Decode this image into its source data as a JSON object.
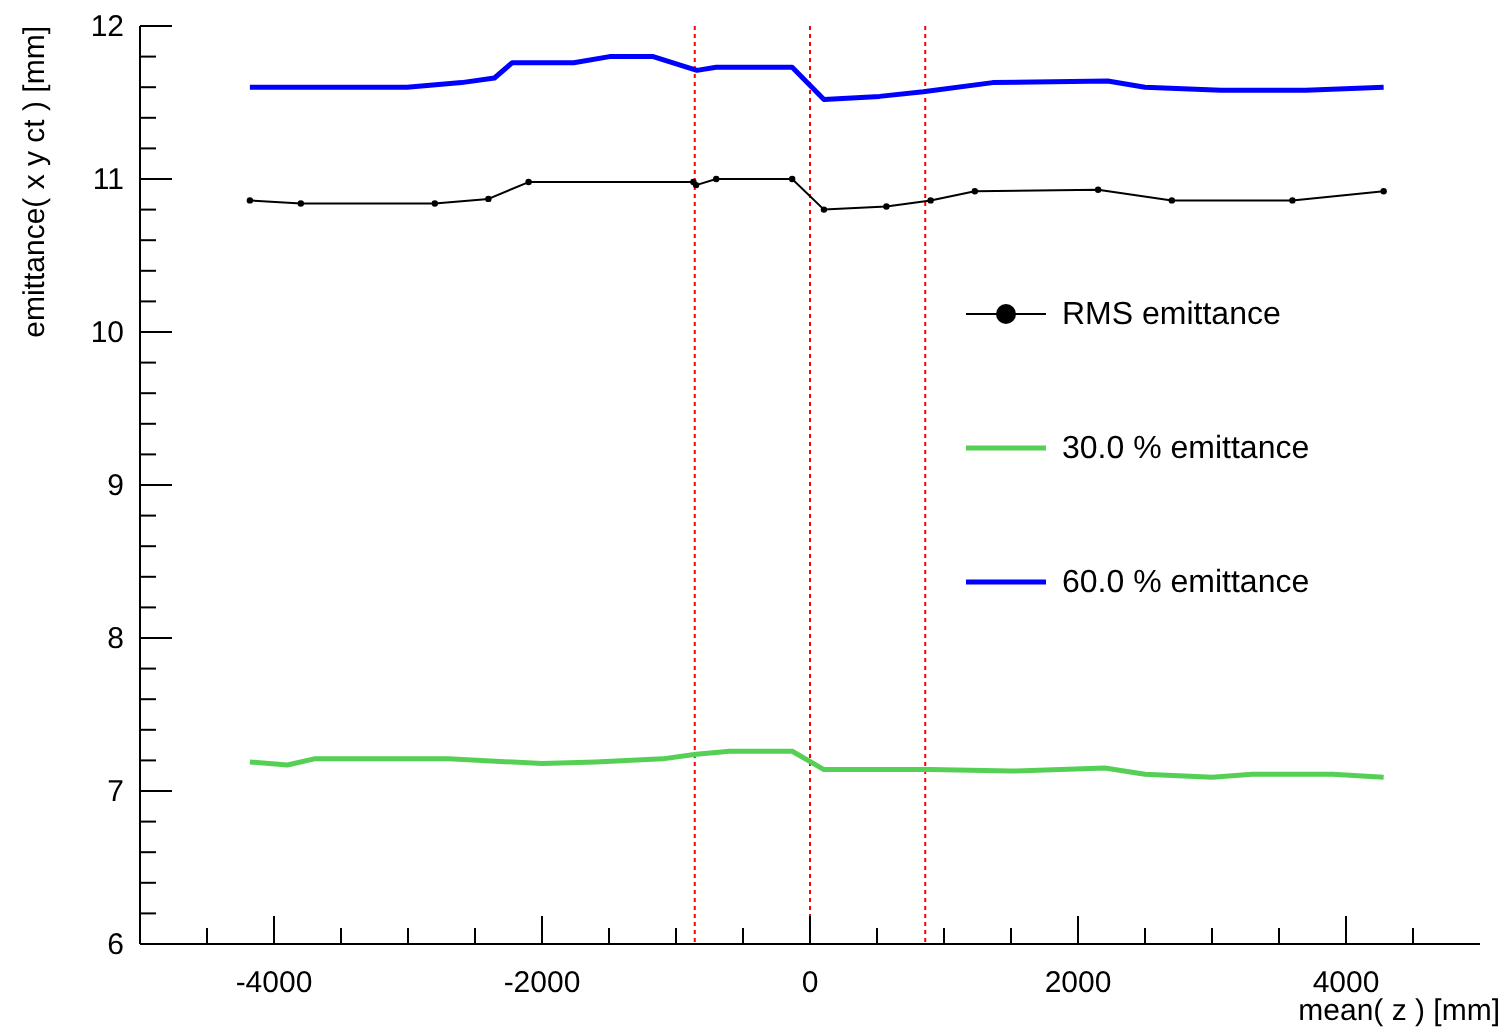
{
  "chart_data": {
    "type": "line",
    "xlabel": "mean( z ) [mm]",
    "ylabel": "emittance( x y ct ) [mm]",
    "xlim": [
      -5000,
      5000
    ],
    "ylim": [
      6,
      12
    ],
    "xticks": [
      {
        "value": -4500,
        "label": null
      },
      -4000,
      {
        "value": -3500,
        "label": null
      },
      {
        "value": -3000,
        "label": null
      },
      {
        "value": -2500,
        "label": null
      },
      -2000,
      {
        "value": -1500,
        "label": null
      },
      {
        "value": -1000,
        "label": null
      },
      {
        "value": -500,
        "label": null
      },
      0,
      {
        "value": 500,
        "label": null
      },
      {
        "value": 1000,
        "label": null
      },
      {
        "value": 1500,
        "label": null
      },
      2000,
      {
        "value": 2500,
        "label": null
      },
      {
        "value": 3000,
        "label": null
      },
      {
        "value": 3500,
        "label": null
      },
      4000,
      {
        "value": 4500,
        "label": null
      }
    ],
    "yticks": [
      6,
      {
        "value": 6.2,
        "label": null
      },
      {
        "value": 6.4,
        "label": null
      },
      {
        "value": 6.6,
        "label": null
      },
      {
        "value": 6.8,
        "label": null
      },
      7,
      {
        "value": 7.2,
        "label": null
      },
      {
        "value": 7.4,
        "label": null
      },
      {
        "value": 7.6,
        "label": null
      },
      {
        "value": 7.8,
        "label": null
      },
      8,
      {
        "value": 8.2,
        "label": null
      },
      {
        "value": 8.4,
        "label": null
      },
      {
        "value": 8.6,
        "label": null
      },
      {
        "value": 8.8,
        "label": null
      },
      9,
      {
        "value": 9.2,
        "label": null
      },
      {
        "value": 9.4,
        "label": null
      },
      {
        "value": 9.6,
        "label": null
      },
      {
        "value": 9.8,
        "label": null
      },
      10,
      {
        "value": 10.2,
        "label": null
      },
      {
        "value": 10.4,
        "label": null
      },
      {
        "value": 10.6,
        "label": null
      },
      {
        "value": 10.8,
        "label": null
      },
      11,
      {
        "value": 11.2,
        "label": null
      },
      {
        "value": 11.4,
        "label": null
      },
      {
        "value": 11.6,
        "label": null
      },
      {
        "value": 11.8,
        "label": null
      },
      12
    ],
    "legend": "right",
    "grid": false,
    "series": [
      {
        "name": "RMS emittance",
        "color": "#000000",
        "marker": "circle",
        "x": [
          -4180,
          -3800,
          -2800,
          -2400,
          -2100,
          -870,
          -850,
          -700,
          -133,
          104,
          570,
          900,
          1230,
          2150,
          2700,
          3600,
          4281
        ],
        "values": [
          10.86,
          10.84,
          10.84,
          10.87,
          10.98,
          10.98,
          10.96,
          11.0,
          11.0,
          10.8,
          10.82,
          10.86,
          10.92,
          10.93,
          10.86,
          10.86,
          10.92
        ]
      },
      {
        "name": "30.0 % emittance",
        "color": "#55d055",
        "x": [
          -4180,
          -3900,
          -3700,
          -2700,
          -2000,
          -1600,
          -1100,
          -850,
          -600,
          -133,
          104,
          900,
          1500,
          2200,
          2500,
          3000,
          3300,
          3900,
          4281
        ],
        "values": [
          7.19,
          7.17,
          7.21,
          7.21,
          7.18,
          7.19,
          7.21,
          7.24,
          7.26,
          7.26,
          7.14,
          7.14,
          7.13,
          7.15,
          7.11,
          7.09,
          7.11,
          7.11,
          7.09
        ]
      },
      {
        "name": "60.0 % emittance",
        "color": "#0000ff",
        "x": [
          -4180,
          -3007,
          -2600,
          -2355,
          -2222,
          -1763,
          -1496,
          -1170,
          -844,
          -700,
          -133,
          104,
          519,
          845,
          1363,
          2222,
          2500,
          3067,
          3700,
          4281
        ],
        "values": [
          11.6,
          11.6,
          11.63,
          11.66,
          11.76,
          11.76,
          11.8,
          11.8,
          11.71,
          11.73,
          11.73,
          11.52,
          11.54,
          11.57,
          11.63,
          11.64,
          11.6,
          11.58,
          11.58,
          11.6
        ]
      }
    ],
    "ref_lines": [
      {
        "axis": "x",
        "value": -860,
        "color": "#ff0000",
        "line_style": "dotted"
      },
      {
        "axis": "x",
        "value": 0,
        "color": "#ff0000",
        "line_style": "dotted"
      },
      {
        "axis": "x",
        "value": 860,
        "color": "#ff0000",
        "line_style": "dotted"
      }
    ]
  }
}
